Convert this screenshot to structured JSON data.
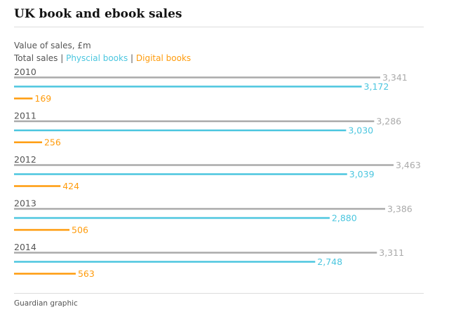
{
  "header": {
    "title": "UK book and ebook sales",
    "subtitle": "Value of sales, £m",
    "source": "Guardian graphic"
  },
  "legend": {
    "total": "Total sales",
    "physical": "Physcial books",
    "digital": "Digital books",
    "separator": " | "
  },
  "colors": {
    "total": "#aaaaaa",
    "physical": "#4bc6df",
    "digital": "#ff9b0b",
    "year_label": "#555555"
  },
  "chart_data": {
    "type": "bar",
    "categories": [
      "2010",
      "2011",
      "2012",
      "2013",
      "2014"
    ],
    "series": [
      {
        "name": "Total sales",
        "values": [
          3341,
          3286,
          3463,
          3386,
          3311
        ]
      },
      {
        "name": "Physcial books",
        "values": [
          3172,
          3030,
          3039,
          2880,
          2748
        ]
      },
      {
        "name": "Digital books",
        "values": [
          169,
          256,
          424,
          506,
          563
        ]
      }
    ],
    "title": "UK book and ebook sales",
    "ylabel": "Value of sales, £m",
    "orientation": "horizontal",
    "xlim": [
      0,
      3463
    ],
    "grid": false,
    "legend_position": "top-left"
  }
}
